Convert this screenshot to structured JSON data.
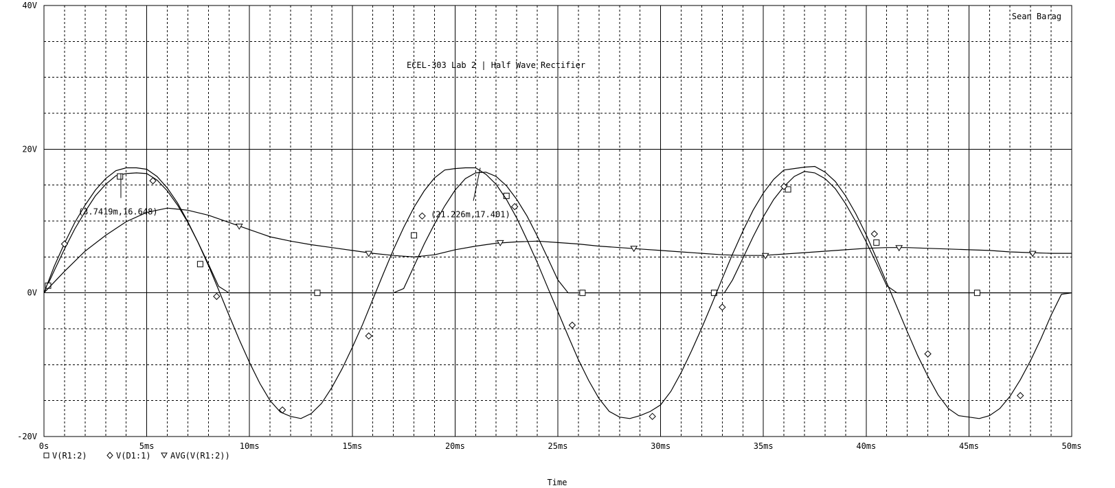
{
  "chart_data": {
    "type": "line",
    "title": "ECEL-303 Lab 2 | Half Wave Rectifier",
    "author": "Sean Barag",
    "xlabel": "Time",
    "ylabel": "",
    "xlim": [
      0,
      50
    ],
    "ylim": [
      -20,
      40
    ],
    "x_unit": "ms",
    "grid": true,
    "legend_position": "bottom-left",
    "x_ticks": [
      0,
      5,
      10,
      15,
      20,
      25,
      30,
      35,
      40,
      45,
      50
    ],
    "x_tick_labels": [
      "0s",
      "5ms",
      "10ms",
      "15ms",
      "20ms",
      "25ms",
      "30ms",
      "35ms",
      "40ms",
      "45ms",
      "50ms"
    ],
    "y_ticks": [
      -20,
      0,
      20,
      40
    ],
    "y_tick_labels": [
      "-20V",
      "0V",
      "20V",
      "40V"
    ],
    "series": [
      {
        "name": "V(R1:2)",
        "marker": "square",
        "x": [
          0,
          0.5,
          1,
          1.5,
          2,
          2.5,
          3,
          3.5,
          4,
          4.5,
          5,
          5.5,
          6,
          6.5,
          7,
          7.5,
          8,
          8.5,
          9,
          10,
          13.2,
          16,
          17,
          17.5,
          18,
          18.5,
          19,
          19.5,
          20,
          20.5,
          21,
          21.5,
          22,
          22.5,
          23,
          23.5,
          24,
          24.5,
          25,
          25.5,
          26,
          32,
          33.1,
          33.5,
          34,
          34.5,
          35,
          35.5,
          36,
          36.5,
          37,
          37.5,
          38,
          38.5,
          39,
          39.5,
          40,
          40.5,
          41,
          41.5,
          42,
          45.4,
          50
        ],
        "y": [
          0,
          3.1,
          6.1,
          8.9,
          11.3,
          13.5,
          15.1,
          16.3,
          16.6,
          16.7,
          16.6,
          15.7,
          14.2,
          12.2,
          9.8,
          7,
          4,
          0.9,
          0,
          0,
          0,
          0,
          0,
          0.6,
          3.7,
          6.8,
          9.6,
          12.1,
          14.3,
          15.9,
          16.7,
          16.8,
          16.2,
          14.9,
          13,
          10.7,
          7.9,
          4.9,
          1.8,
          0,
          0,
          0,
          0,
          1.8,
          4.8,
          7.8,
          10.6,
          13,
          14.8,
          16.2,
          16.9,
          16.7,
          15.9,
          14.5,
          12.4,
          9.9,
          7.1,
          4.1,
          1,
          0,
          0,
          0,
          0
        ],
        "markers_x": [
          0.2,
          3.7,
          7.6,
          13.3,
          18,
          22.5,
          26.2,
          32.6,
          36.2,
          40.5,
          45.4
        ],
        "markers_y": [
          1,
          16.2,
          4,
          0,
          8,
          13.5,
          0,
          0,
          14.4,
          7,
          0
        ]
      },
      {
        "name": "V(D1:1)",
        "marker": "diamond",
        "x": [
          0,
          0.5,
          1,
          1.5,
          2,
          2.5,
          3,
          3.5,
          4,
          4.5,
          5,
          5.5,
          6,
          6.5,
          7,
          7.5,
          8,
          8.5,
          9,
          9.5,
          10,
          10.5,
          11,
          11.5,
          12,
          12.5,
          13,
          13.5,
          14,
          14.5,
          15,
          15.5,
          16,
          16.5,
          17,
          17.5,
          18,
          18.5,
          19,
          19.5,
          20,
          20.5,
          21,
          21.5,
          22,
          22.5,
          23,
          23.5,
          24,
          24.5,
          25,
          25.5,
          26,
          26.5,
          27,
          27.5,
          28,
          28.5,
          29,
          29.5,
          30,
          30.5,
          31,
          31.5,
          32,
          32.5,
          33,
          33.5,
          34,
          34.5,
          35,
          35.5,
          36,
          36.5,
          37,
          37.5,
          38,
          38.5,
          39,
          39.5,
          40,
          40.5,
          41,
          41.5,
          42,
          42.5,
          43,
          43.5,
          44,
          44.5,
          45,
          45.5,
          46,
          46.5,
          47,
          47.5,
          48,
          48.5,
          49,
          49.5,
          50
        ],
        "y": [
          0,
          3.7,
          6.9,
          9.8,
          12.2,
          14.3,
          15.9,
          17,
          17.4,
          17.4,
          17.2,
          16.2,
          14.6,
          12.5,
          9.9,
          7,
          3.8,
          0.4,
          -3.1,
          -6.5,
          -9.7,
          -12.6,
          -15,
          -16.6,
          -17.2,
          -17.5,
          -16.8,
          -15.4,
          -13.2,
          -10.6,
          -7.6,
          -4.4,
          -0.9,
          2.6,
          6,
          9.1,
          11.9,
          14.2,
          16,
          17.1,
          17.3,
          17.4,
          17.4,
          16.5,
          15.1,
          13,
          10.4,
          7.4,
          4.2,
          0.8,
          -2.6,
          -6,
          -9.3,
          -12.2,
          -14.7,
          -16.5,
          -17.3,
          -17.5,
          -17.1,
          -16.5,
          -15.6,
          -13.7,
          -11.1,
          -8.1,
          -4.9,
          -1.5,
          2,
          5.4,
          8.6,
          11.5,
          13.9,
          15.8,
          17.1,
          17.3,
          17.5,
          17.6,
          16.8,
          15.5,
          13.5,
          11,
          8.1,
          4.8,
          1.4,
          -2,
          -5.4,
          -8.7,
          -11.6,
          -14.2,
          -16.1,
          -17.1,
          -17.3,
          -17.5,
          -17.1,
          -16.1,
          -14.4,
          -12.1,
          -9.4,
          -6.4,
          -3.1,
          -0.2,
          0
        ],
        "markers_x": [
          1,
          5.3,
          8.4,
          11.6,
          15.8,
          18.4,
          22.9,
          25.7,
          29.6,
          33,
          36,
          40.4,
          43,
          47.5
        ],
        "markers_y": [
          6.8,
          15.6,
          -0.5,
          -16.3,
          -6,
          10.7,
          12,
          -4.5,
          -17.2,
          -2,
          14.8,
          8.2,
          -8.5,
          -14.3
        ]
      },
      {
        "name": "AVG(V(R1:2))",
        "marker": "triangle",
        "x": [
          0,
          1,
          2,
          3,
          4,
          5,
          6,
          7,
          8,
          9,
          10,
          11,
          12,
          13,
          14,
          15,
          16,
          17,
          18,
          19,
          20,
          21,
          22,
          23,
          24,
          25,
          26,
          27,
          28,
          29,
          30,
          31,
          32,
          33,
          34,
          35,
          36,
          37,
          38,
          39,
          40,
          41,
          42,
          43,
          44,
          45,
          46,
          47,
          48,
          49,
          50
        ],
        "y": [
          0,
          3,
          5.8,
          8,
          9.9,
          11.2,
          11.8,
          11.5,
          10.8,
          9.8,
          8.8,
          7.8,
          7.2,
          6.7,
          6.3,
          5.9,
          5.5,
          5.2,
          5,
          5.3,
          6,
          6.5,
          6.9,
          7.1,
          7.2,
          7,
          6.8,
          6.5,
          6.3,
          6.1,
          5.9,
          5.7,
          5.5,
          5.3,
          5.2,
          5.2,
          5.4,
          5.6,
          5.8,
          6,
          6.2,
          6.3,
          6.3,
          6.2,
          6.1,
          6,
          5.9,
          5.7,
          5.6,
          5.5,
          5.5
        ],
        "markers_x": [
          9.5,
          15.8,
          22.2,
          28.7,
          35.1,
          41.6,
          48.1
        ],
        "markers_y": [
          9.3,
          5.5,
          7,
          6.2,
          5.2,
          6.3,
          5.5
        ]
      }
    ],
    "annotations": [
      {
        "text": "(3.7419m,16.648)",
        "x": 3.7419,
        "y": 16.648
      },
      {
        "text": "(21.226m,17.401)",
        "x": 21.226,
        "y": 17.401
      }
    ]
  }
}
